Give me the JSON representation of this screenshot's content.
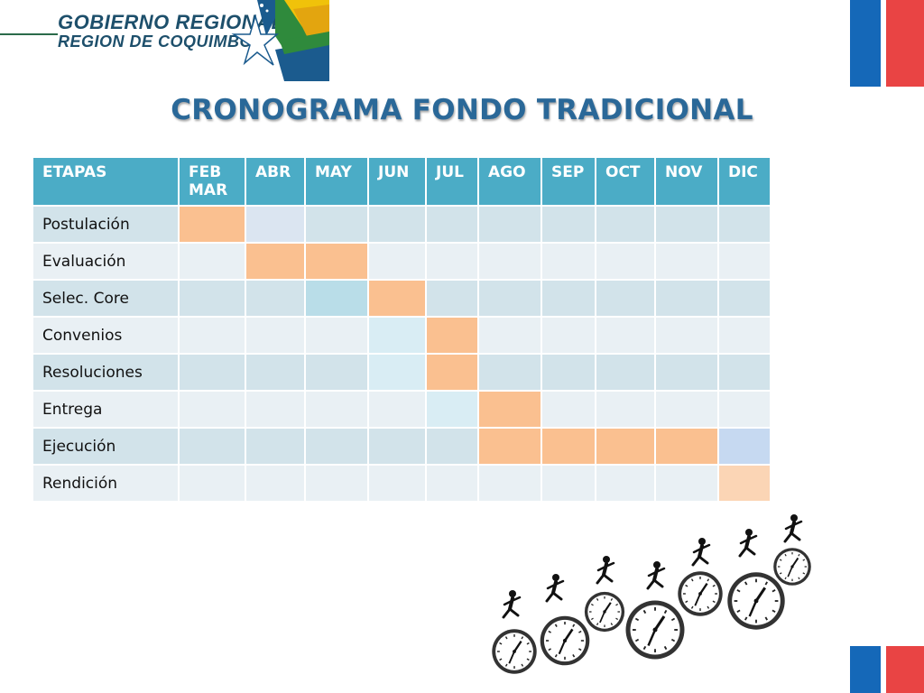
{
  "logo": {
    "line1": "GOBIERNO REGIONAL",
    "line2": "REGION DE COQUIMBO"
  },
  "title": "CRONOGRAMA FONDO TRADICIONAL",
  "table": {
    "headers": [
      "ETAPAS",
      "FEB MAR",
      "ABR",
      "MAY",
      "JUN",
      "JUL",
      "AGO",
      "SEP",
      "OCT",
      "NOV",
      "DIC"
    ],
    "rows": [
      {
        "stage": "Postulación"
      },
      {
        "stage": "Evaluación"
      },
      {
        "stage": "Selec. Core"
      },
      {
        "stage": "Convenios"
      },
      {
        "stage": "Resoluciones"
      },
      {
        "stage": "Entrega"
      },
      {
        "stage": "Ejecución"
      },
      {
        "stage": "Rendición"
      }
    ]
  },
  "colors": {
    "header": "#4bacc6",
    "active": "#fac090",
    "title": "#2a6898"
  }
}
